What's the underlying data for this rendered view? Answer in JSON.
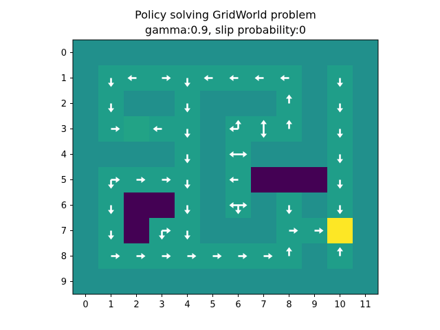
{
  "chart_data": {
    "type": "heatmap",
    "title": "Policy solving GridWorld problem",
    "subtitle": "gamma:0.9, slip probability:0",
    "xlabel": "",
    "ylabel": "",
    "x_ticks": [
      "0",
      "1",
      "2",
      "3",
      "4",
      "5",
      "6",
      "7",
      "8",
      "9",
      "10",
      "11"
    ],
    "y_ticks": [
      "0",
      "1",
      "2",
      "3",
      "4",
      "5",
      "6",
      "7",
      "8",
      "9"
    ],
    "xlim": [
      -0.5,
      11.5
    ],
    "ylim": [
      9.5,
      -0.5
    ],
    "colormap": "viridis",
    "colors": {
      "wall": "#21908c",
      "free": "#1f9e89",
      "start": "#22a386",
      "penalty": "#440154",
      "goal": "#fde725",
      "arrow": "#ffffff"
    },
    "grid": [
      [
        1,
        1,
        1,
        1,
        1,
        1,
        1,
        1,
        1,
        1,
        1,
        1
      ],
      [
        1,
        0,
        0,
        0,
        0,
        0,
        0,
        0,
        0,
        1,
        0,
        1
      ],
      [
        1,
        0,
        1,
        1,
        0,
        1,
        1,
        1,
        0,
        1,
        0,
        1
      ],
      [
        1,
        0,
        2,
        0,
        0,
        1,
        0,
        0,
        0,
        1,
        0,
        1
      ],
      [
        1,
        1,
        1,
        1,
        0,
        1,
        0,
        1,
        1,
        1,
        0,
        1
      ],
      [
        1,
        0,
        0,
        0,
        0,
        1,
        0,
        3,
        3,
        3,
        0,
        1
      ],
      [
        1,
        0,
        3,
        3,
        0,
        1,
        0,
        1,
        0,
        1,
        0,
        1
      ],
      [
        1,
        0,
        3,
        0,
        0,
        1,
        1,
        1,
        0,
        0,
        4,
        1
      ],
      [
        1,
        0,
        0,
        0,
        0,
        0,
        0,
        0,
        0,
        1,
        0,
        1
      ],
      [
        1,
        1,
        1,
        1,
        1,
        1,
        1,
        1,
        1,
        1,
        1,
        1
      ]
    ],
    "cell_legend": {
      "0": "free",
      "1": "wall",
      "2": "start",
      "3": "penalty",
      "4": "goal"
    },
    "policy": [
      {
        "row": 1,
        "col": 1,
        "actions": [
          "down"
        ]
      },
      {
        "row": 1,
        "col": 2,
        "actions": [
          "left"
        ]
      },
      {
        "row": 1,
        "col": 3,
        "actions": [
          "right"
        ]
      },
      {
        "row": 1,
        "col": 4,
        "actions": [
          "down"
        ]
      },
      {
        "row": 1,
        "col": 5,
        "actions": [
          "left"
        ]
      },
      {
        "row": 1,
        "col": 6,
        "actions": [
          "left"
        ]
      },
      {
        "row": 1,
        "col": 7,
        "actions": [
          "left"
        ]
      },
      {
        "row": 1,
        "col": 8,
        "actions": [
          "left"
        ]
      },
      {
        "row": 1,
        "col": 10,
        "actions": [
          "down"
        ]
      },
      {
        "row": 2,
        "col": 1,
        "actions": [
          "down"
        ]
      },
      {
        "row": 2,
        "col": 4,
        "actions": [
          "down"
        ]
      },
      {
        "row": 2,
        "col": 8,
        "actions": [
          "up"
        ]
      },
      {
        "row": 2,
        "col": 10,
        "actions": [
          "down"
        ]
      },
      {
        "row": 3,
        "col": 1,
        "actions": [
          "right"
        ]
      },
      {
        "row": 3,
        "col": 3,
        "actions": [
          "left"
        ]
      },
      {
        "row": 3,
        "col": 4,
        "actions": [
          "down"
        ]
      },
      {
        "row": 3,
        "col": 6,
        "actions": [
          "left",
          "up"
        ]
      },
      {
        "row": 3,
        "col": 7,
        "actions": [
          "up",
          "down"
        ]
      },
      {
        "row": 3,
        "col": 8,
        "actions": [
          "up"
        ]
      },
      {
        "row": 3,
        "col": 10,
        "actions": [
          "down"
        ]
      },
      {
        "row": 4,
        "col": 4,
        "actions": [
          "down"
        ]
      },
      {
        "row": 4,
        "col": 6,
        "actions": [
          "left",
          "right"
        ]
      },
      {
        "row": 4,
        "col": 10,
        "actions": [
          "down"
        ]
      },
      {
        "row": 5,
        "col": 1,
        "actions": [
          "down",
          "right"
        ]
      },
      {
        "row": 5,
        "col": 2,
        "actions": [
          "right"
        ]
      },
      {
        "row": 5,
        "col": 3,
        "actions": [
          "right"
        ]
      },
      {
        "row": 5,
        "col": 4,
        "actions": [
          "down"
        ]
      },
      {
        "row": 5,
        "col": 6,
        "actions": [
          "left"
        ]
      },
      {
        "row": 5,
        "col": 10,
        "actions": [
          "down"
        ]
      },
      {
        "row": 6,
        "col": 1,
        "actions": [
          "down"
        ]
      },
      {
        "row": 6,
        "col": 4,
        "actions": [
          "down"
        ]
      },
      {
        "row": 6,
        "col": 6,
        "actions": [
          "left",
          "right",
          "down"
        ]
      },
      {
        "row": 6,
        "col": 8,
        "actions": [
          "down"
        ]
      },
      {
        "row": 6,
        "col": 10,
        "actions": [
          "down"
        ]
      },
      {
        "row": 7,
        "col": 1,
        "actions": [
          "down"
        ]
      },
      {
        "row": 7,
        "col": 3,
        "actions": [
          "down",
          "right"
        ]
      },
      {
        "row": 7,
        "col": 4,
        "actions": [
          "down"
        ]
      },
      {
        "row": 7,
        "col": 8,
        "actions": [
          "right"
        ]
      },
      {
        "row": 7,
        "col": 9,
        "actions": [
          "right"
        ]
      },
      {
        "row": 8,
        "col": 1,
        "actions": [
          "right"
        ]
      },
      {
        "row": 8,
        "col": 2,
        "actions": [
          "right"
        ]
      },
      {
        "row": 8,
        "col": 3,
        "actions": [
          "right"
        ]
      },
      {
        "row": 8,
        "col": 4,
        "actions": [
          "right"
        ]
      },
      {
        "row": 8,
        "col": 5,
        "actions": [
          "right"
        ]
      },
      {
        "row": 8,
        "col": 6,
        "actions": [
          "right"
        ]
      },
      {
        "row": 8,
        "col": 7,
        "actions": [
          "right"
        ]
      },
      {
        "row": 8,
        "col": 8,
        "actions": [
          "up"
        ]
      },
      {
        "row": 8,
        "col": 10,
        "actions": [
          "up"
        ]
      }
    ]
  }
}
